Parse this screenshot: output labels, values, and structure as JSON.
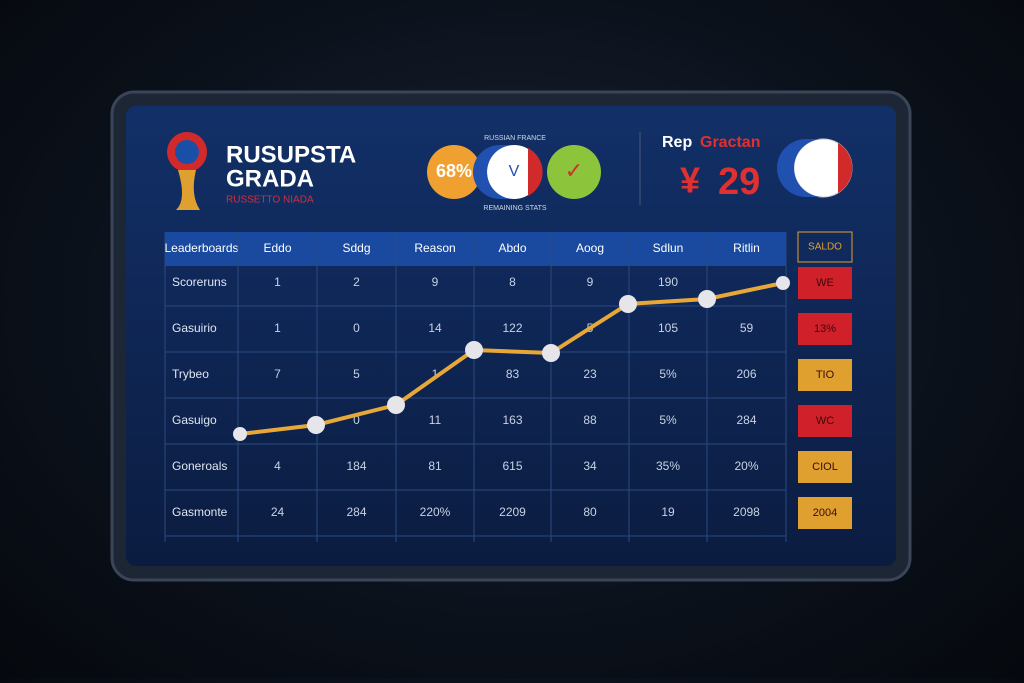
{
  "header": {
    "title_line1": "RUSUPSTA",
    "title_line2": "GRADA",
    "subtitle": "RUSSETTO NIADA",
    "badges": {
      "top_caption": "RUSSIAN FRANCE",
      "percent": "68%",
      "flag_letter": "V",
      "check": "✓",
      "bottom_caption": "REMAINING STATS"
    },
    "score": {
      "label_left": "Rep",
      "label_right": "Gractan",
      "currency": "¥",
      "number": "29"
    }
  },
  "table": {
    "headers": [
      "Leaderboards",
      "Eddo",
      "Sddg",
      "Reason",
      "Abdo",
      "Aoog",
      "Sdlun",
      "Ritlin"
    ],
    "rows": [
      {
        "label": "Scoreruns",
        "cells": [
          "1",
          "2",
          "9",
          "8",
          "9",
          "190",
          null
        ],
        "badge": "WE",
        "badge_color": "#d0202a"
      },
      {
        "label": "Gasuirio",
        "cells": [
          "1",
          "0",
          "14",
          "122",
          "5",
          "105",
          "59"
        ],
        "badge": "13%",
        "badge_color": "#d0202a"
      },
      {
        "label": "Trybeo",
        "cells": [
          "7",
          "5",
          "1",
          "83",
          "23",
          "5%",
          "206"
        ],
        "badge": "TIO",
        "badge_color": "#e0a030"
      },
      {
        "label": "Gasuigo",
        "cells": [
          null,
          "0",
          "11",
          "163",
          "88",
          "5%",
          "284"
        ],
        "badge": "WC",
        "badge_color": "#d0202a"
      },
      {
        "label": "Goneroals",
        "cells": [
          "4",
          "184",
          "81",
          "615",
          "34",
          "35%",
          "20%"
        ],
        "badge": "CIOL",
        "badge_color": "#e0a030"
      },
      {
        "label": "Gasmonte",
        "cells": [
          "24",
          "284",
          "220%",
          "2209",
          "80",
          "19",
          "2098"
        ],
        "badge": "2004",
        "badge_color": "#e0a030"
      }
    ],
    "header_badge": "SALDO"
  }
}
